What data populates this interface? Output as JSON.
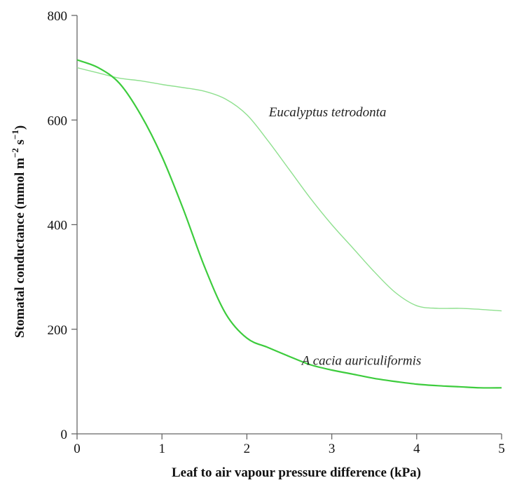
{
  "chart_data": {
    "type": "line",
    "title": "",
    "xlabel": "Leaf to air vapour pressure difference (kPa)",
    "ylabel_main": "Stomatal conductance (mmol m",
    "ylabel_exp1": "−2",
    "ylabel_mid": " s",
    "ylabel_exp2": "−1",
    "ylabel_end": ")",
    "xlim": [
      0,
      5
    ],
    "ylim": [
      0,
      800
    ],
    "xticks": [
      0,
      1,
      2,
      3,
      4,
      5
    ],
    "yticks": [
      0,
      200,
      400,
      600,
      800
    ],
    "xtick_labels": [
      "0",
      "1",
      "2",
      "3",
      "4",
      "5"
    ],
    "ytick_labels": [
      "0",
      "200",
      "400",
      "600",
      "800"
    ],
    "grid": false,
    "series": [
      {
        "name": "Eucalyptus tetrodonta",
        "color": "#8fe08f",
        "x": [
          0,
          0.25,
          0.5,
          0.75,
          1.0,
          1.25,
          1.5,
          1.75,
          2.0,
          2.25,
          2.5,
          2.75,
          3.0,
          3.25,
          3.5,
          3.75,
          4.0,
          4.25,
          4.5,
          4.75,
          5.0
        ],
        "values": [
          700,
          690,
          680,
          675,
          668,
          662,
          655,
          640,
          610,
          560,
          505,
          450,
          400,
          355,
          310,
          270,
          245,
          240,
          240,
          238,
          235
        ]
      },
      {
        "name": "Acacia auriculiformis",
        "color": "#3dcc3d",
        "x": [
          0,
          0.25,
          0.5,
          0.75,
          1.0,
          1.25,
          1.5,
          1.75,
          2.0,
          2.25,
          2.5,
          2.75,
          3.0,
          3.25,
          3.5,
          3.75,
          4.0,
          4.25,
          4.5,
          4.75,
          5.0
        ],
        "values": [
          715,
          700,
          670,
          610,
          530,
          430,
          320,
          230,
          183,
          165,
          148,
          132,
          122,
          114,
          106,
          100,
          95,
          92,
          90,
          88,
          88
        ]
      }
    ],
    "labels": [
      {
        "text": "Eucalyptus tetrodonta",
        "x": 2.95,
        "y": 615
      },
      {
        "text": "A cacia auriculiformis",
        "x": 3.35,
        "y": 140
      }
    ]
  }
}
